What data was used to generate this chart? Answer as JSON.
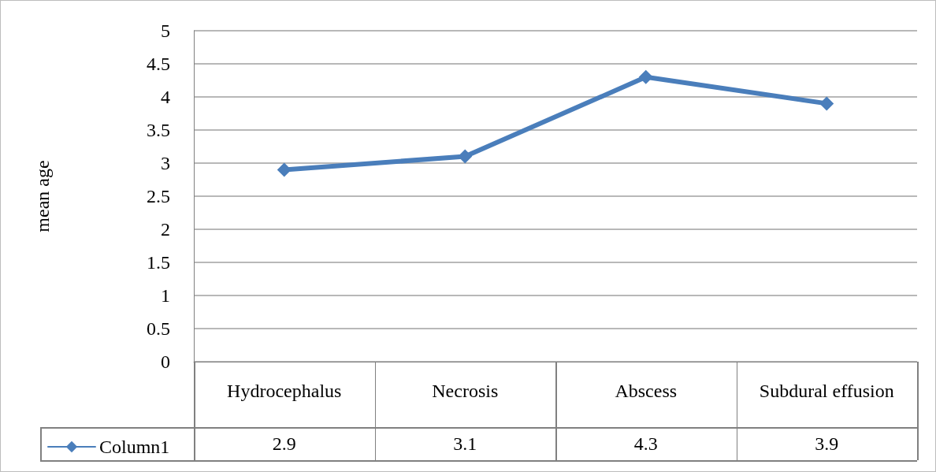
{
  "chart_data": {
    "type": "line",
    "ylabel": "mean age",
    "categories": [
      "Hydrocephalus",
      "Necrosis",
      "Abscess",
      "Subdural effusion"
    ],
    "series": [
      {
        "name": "Column1",
        "color": "#4a7ebb",
        "values": [
          2.9,
          3.1,
          4.3,
          3.9
        ]
      }
    ],
    "ylim": [
      0,
      5
    ],
    "yticks": [
      0,
      0.5,
      1,
      1.5,
      2,
      2.5,
      3,
      3.5,
      4,
      4.5,
      5
    ],
    "grid": "y",
    "marker": "diamond",
    "line_style": "solid",
    "data_labels": true,
    "legend": "bottom left"
  }
}
